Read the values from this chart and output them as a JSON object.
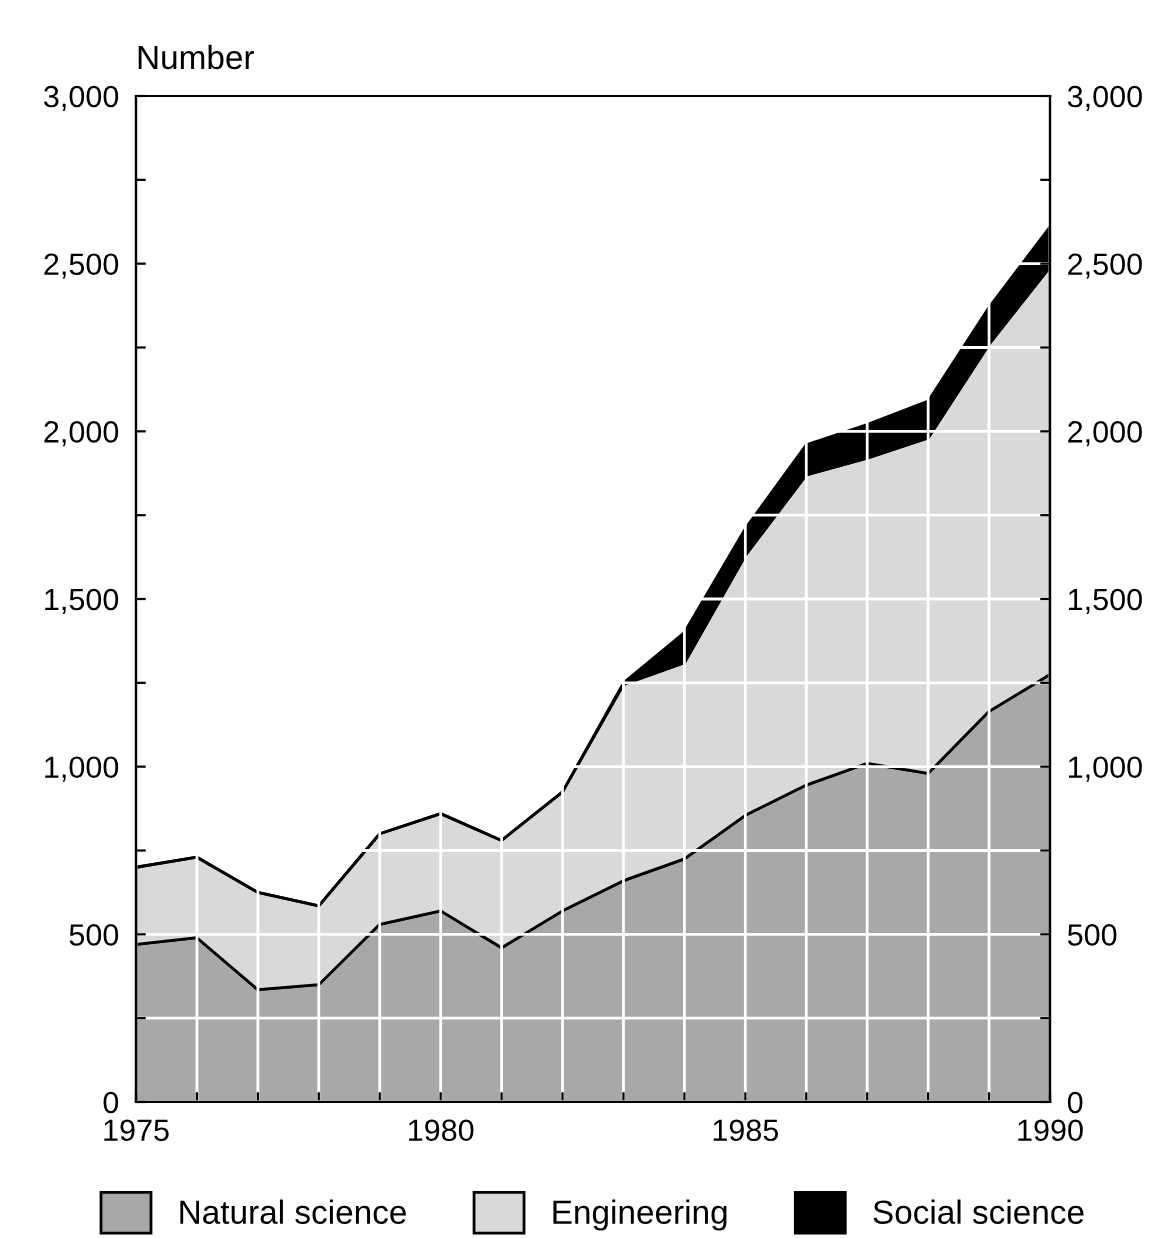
{
  "chart_data": {
    "type": "area",
    "stacked": true,
    "ylabel": "Number",
    "x": [
      1975,
      1976,
      1977,
      1978,
      1979,
      1980,
      1981,
      1982,
      1983,
      1984,
      1985,
      1986,
      1987,
      1988,
      1989,
      1990
    ],
    "series": [
      {
        "name": "Natural science",
        "color": "#a8a8a8",
        "values": [
          470,
          490,
          335,
          350,
          530,
          570,
          460,
          570,
          660,
          725,
          855,
          945,
          1010,
          980,
          1165,
          1275
        ]
      },
      {
        "name": "Engineering",
        "color": "#d9d9d9",
        "values": [
          230,
          240,
          290,
          235,
          270,
          290,
          320,
          355,
          585,
          585,
          775,
          925,
          910,
          1000,
          1095,
          1215
        ]
      },
      {
        "name": "Social science",
        "color": "#000000",
        "values": [
          0,
          0,
          0,
          0,
          0,
          0,
          0,
          0,
          5,
          90,
          80,
          90,
          100,
          110,
          110,
          120
        ]
      }
    ],
    "xlim": [
      1975,
      1990
    ],
    "xticks": [
      1975,
      {
        "value": 1976,
        "label": null
      },
      {
        "value": 1977,
        "label": null
      },
      {
        "value": 1978,
        "label": null
      },
      {
        "value": 1979,
        "label": null
      },
      {
        "value": 1980,
        "label": "1980"
      },
      {
        "value": 1981,
        "label": null
      },
      {
        "value": 1982,
        "label": null
      },
      {
        "value": 1983,
        "label": null
      },
      {
        "value": 1984,
        "label": null
      },
      {
        "value": 1985,
        "label": "1985"
      },
      {
        "value": 1986,
        "label": null
      },
      {
        "value": 1987,
        "label": null
      },
      {
        "value": 1988,
        "label": null
      },
      {
        "value": 1989,
        "label": null
      },
      1990
    ],
    "ylim": [
      0,
      3000
    ],
    "yticks": [
      {
        "value": 0,
        "label": "0"
      },
      {
        "value": 250,
        "label": null
      },
      {
        "value": 500,
        "label": "500"
      },
      {
        "value": 750,
        "label": null
      },
      {
        "value": 1000,
        "label": "1,000"
      },
      {
        "value": 1250,
        "label": null
      },
      {
        "value": 1500,
        "label": "1,500"
      },
      {
        "value": 1750,
        "label": null
      },
      {
        "value": 2000,
        "label": "2,000"
      },
      {
        "value": 2250,
        "label": null
      },
      {
        "value": 2500,
        "label": "2,500"
      },
      {
        "value": 2750,
        "label": null
      },
      {
        "value": 3000,
        "label": "3,000"
      }
    ],
    "y2lim": [
      0,
      3000
    ],
    "y2ticks": [
      {
        "value": 0,
        "label": "0"
      },
      {
        "value": 250,
        "label": null
      },
      {
        "value": 500,
        "label": "500"
      },
      {
        "value": 750,
        "label": null
      },
      {
        "value": 1000,
        "label": "1,000"
      },
      {
        "value": 1250,
        "label": null
      },
      {
        "value": 1500,
        "label": "1,500"
      },
      {
        "value": 1750,
        "label": null
      },
      {
        "value": 2000,
        "label": "2,000"
      },
      {
        "value": 2250,
        "label": null
      },
      {
        "value": 2500,
        "label": "2,500"
      },
      {
        "value": 2750,
        "label": null
      },
      {
        "value": 3000,
        "label": "3,000"
      }
    ],
    "grid": true,
    "legend": "bottom"
  }
}
